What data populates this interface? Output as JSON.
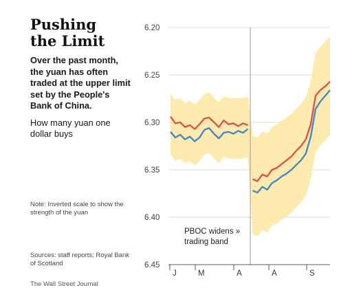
{
  "headline": {
    "line1": "Pushing",
    "line2": "the Limit"
  },
  "description": "Over the past month, the yuan has often traded at the upper limit set by the People's Bank of China.",
  "subtitle": "How many yuan one dollar buys",
  "note": "Note: Inverted scale to show the strength of the yuan",
  "sources": "Sources: staff reports; Royal Bank of Scotland",
  "credit": "The Wall Street Journal",
  "annotation": {
    "line1": "PBOC widens »",
    "line2": "trading band"
  },
  "colors": {
    "band": "#fde6a0",
    "upper_limit_line": "#d9534f",
    "rate_line": "#4a86c5",
    "grid": "#d8d8d8"
  },
  "chart_data": {
    "type": "line",
    "yaxis_inverted": true,
    "ylim": [
      6.45,
      6.2
    ],
    "yticks": [
      "6.20",
      "6.25",
      "6.30",
      "6.35",
      "6.40",
      "6.45"
    ],
    "ytick_values": [
      6.2,
      6.25,
      6.3,
      6.35,
      6.4,
      6.45
    ],
    "xtick_labels": [
      "J",
      "M",
      "A",
      "A",
      "S"
    ],
    "band_change_index": 16,
    "series": [
      {
        "values": [
          6.294,
          6.301,
          6.3,
          6.305,
          6.303,
          6.307,
          6.302,
          6.296,
          6.295,
          6.3,
          6.305,
          6.298,
          6.302,
          6.301,
          6.304,
          6.301,
          6.303,
          6.36,
          6.362,
          6.355,
          6.357,
          6.35,
          6.348,
          6.344,
          6.34,
          6.336,
          6.33,
          6.325,
          6.318,
          6.302,
          6.272,
          6.266,
          6.262,
          6.257
        ]
      },
      {
        "values": [
          6.31,
          6.316,
          6.313,
          6.318,
          6.315,
          6.32,
          6.316,
          6.308,
          6.306,
          6.312,
          6.317,
          6.311,
          6.31,
          6.312,
          6.309,
          6.311,
          6.307,
          6.372,
          6.374,
          6.368,
          6.371,
          6.364,
          6.361,
          6.357,
          6.354,
          6.35,
          6.345,
          6.34,
          6.333,
          6.315,
          6.286,
          6.278,
          6.272,
          6.266
        ]
      }
    ]
  }
}
